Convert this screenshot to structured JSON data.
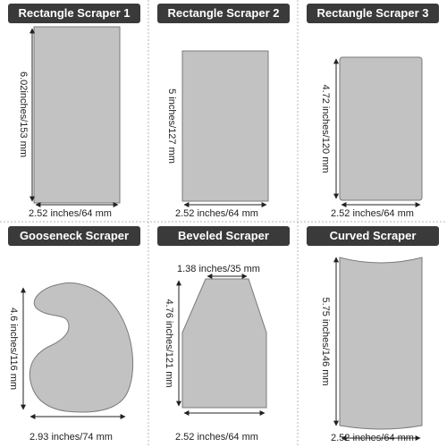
{
  "colors": {
    "scraper_fill": "#c2c2c2",
    "scraper_stroke": "#7a7a7a",
    "label_bg": "#3a3a3a",
    "divider": "#b5b5b5"
  },
  "panels": [
    {
      "title": "Rectangle Scraper 1",
      "width_text": "2.52 inches/64 mm",
      "height_text": "6.02inches/153 mm"
    },
    {
      "title": "Rectangle Scraper 2",
      "width_text": "2.52 inches/64 mm",
      "height_text": "5 inches/127 mm"
    },
    {
      "title": "Rectangle Scraper 3",
      "width_text": "2.52 inches/64 mm",
      "height_text": "4.72 inches/120 mm"
    },
    {
      "title": "Gooseneck Scraper",
      "width_text": "2.93 inches/74 mm",
      "height_text": "4.6 inches/116 mm"
    },
    {
      "title": "Beveled Scraper",
      "width_text": "2.52 inches/64 mm",
      "height_text": "4.76 inches/121 mm",
      "top_text": "1.38 inches/35 mm"
    },
    {
      "title": "Curved Scraper",
      "width_text": "2.52 inches/64 mm",
      "height_text": "5.75 inches/146 mm"
    }
  ]
}
